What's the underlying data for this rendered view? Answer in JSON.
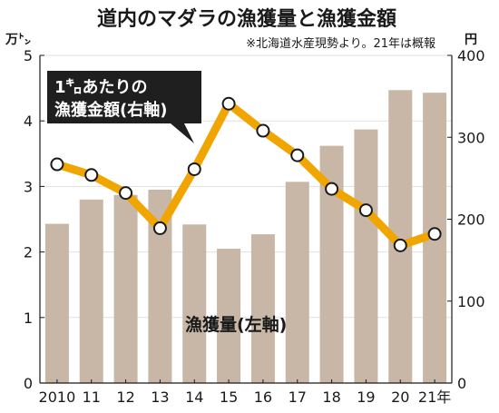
{
  "chart_data": {
    "type": "bar+line",
    "title": "道内のマダラの漁獲量と漁獲金額",
    "subtitle": "※北海道水産現勢より。21年は概報",
    "categories": [
      "2010",
      "11",
      "12",
      "13",
      "14",
      "15",
      "16",
      "17",
      "18",
      "19",
      "20",
      "21年"
    ],
    "left_axis": {
      "unit": "万㌧",
      "ylim": [
        0,
        5
      ],
      "ticks": [
        "0",
        "1",
        "2",
        "3",
        "4",
        "5"
      ]
    },
    "right_axis": {
      "unit": "円",
      "ylim": [
        0,
        400
      ],
      "ticks": [
        "0",
        "100",
        "200",
        "300",
        "400"
      ]
    },
    "series": [
      {
        "name": "漁獲量(左軸)",
        "kind": "bar",
        "axis": "left",
        "color": "#c8b6a6",
        "values": [
          2.43,
          2.8,
          2.87,
          2.95,
          2.42,
          2.05,
          2.27,
          3.07,
          3.62,
          3.87,
          4.47,
          4.43
        ]
      },
      {
        "name": "漁獲金額(右軸)",
        "name_lines": [
          "1㌔あたりの",
          "漁獲金額(右軸)"
        ],
        "kind": "line",
        "axis": "right",
        "color": "#f0a500",
        "values": [
          267,
          254,
          232,
          189,
          261,
          341,
          308,
          278,
          237,
          211,
          168,
          182
        ]
      }
    ]
  }
}
